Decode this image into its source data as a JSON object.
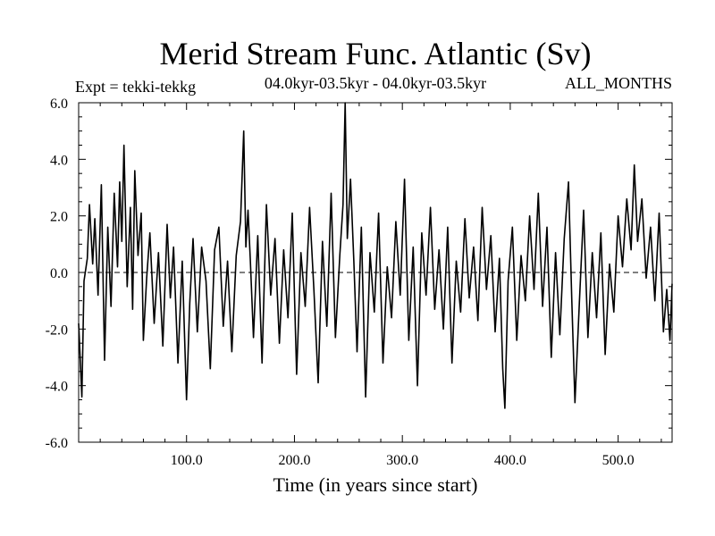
{
  "chart_data": {
    "type": "line",
    "title": "Merid Stream Func. Atlantic (Sv)",
    "subtitle_left": "Expt = tekki-tekkg",
    "subtitle_center": "04.0kyr-03.5kyr - 04.0kyr-03.5kyr",
    "subtitle_right": "ALL_MONTHS",
    "xlabel": "Time (in years since start)",
    "ylabel": "",
    "xlim": [
      0,
      550
    ],
    "ylim": [
      -6,
      6
    ],
    "xticks": [
      100,
      200,
      300,
      400,
      500
    ],
    "xtick_labels": [
      "100.0",
      "200.0",
      "300.0",
      "400.0",
      "500.0"
    ],
    "yticks": [
      6,
      4,
      2,
      0,
      -2,
      -4,
      -6
    ],
    "ytick_labels": [
      "6.0",
      "4.0",
      "2.0",
      "0.0",
      "-2.0",
      "-4.0",
      "-6.0"
    ],
    "zero_line": true,
    "grid": false,
    "series": [
      {
        "color": "#000000",
        "x": [
          0,
          3,
          5,
          8,
          10,
          13,
          15,
          18,
          21,
          24,
          27,
          30,
          33,
          36,
          38,
          40,
          42,
          45,
          48,
          50,
          52,
          55,
          58,
          60,
          63,
          66,
          70,
          74,
          78,
          82,
          85,
          88,
          92,
          96,
          100,
          103,
          106,
          110,
          114,
          118,
          122,
          126,
          130,
          134,
          138,
          142,
          146,
          150,
          153,
          155,
          157,
          159,
          162,
          166,
          170,
          174,
          178,
          182,
          186,
          190,
          194,
          198,
          202,
          206,
          210,
          214,
          218,
          222,
          226,
          230,
          234,
          238,
          242,
          245,
          247,
          249,
          252,
          255,
          258,
          262,
          266,
          270,
          274,
          278,
          282,
          286,
          290,
          294,
          298,
          302,
          306,
          310,
          314,
          318,
          322,
          326,
          330,
          334,
          338,
          342,
          346,
          350,
          354,
          358,
          362,
          366,
          370,
          374,
          378,
          382,
          386,
          390,
          393,
          395,
          398,
          402,
          406,
          410,
          414,
          418,
          422,
          426,
          430,
          434,
          438,
          442,
          446,
          450,
          454,
          457,
          460,
          464,
          468,
          472,
          476,
          480,
          484,
          488,
          492,
          496,
          500,
          504,
          508,
          512,
          515,
          518,
          522,
          526,
          530,
          534,
          538,
          542,
          545,
          548,
          550
        ],
        "y": [
          -1.8,
          -4.4,
          -0.3,
          0.5,
          2.4,
          0.3,
          1.9,
          -0.8,
          3.1,
          -3.1,
          1.6,
          -1.2,
          2.8,
          0.2,
          3.2,
          1.1,
          4.5,
          -0.5,
          2.3,
          -1.3,
          3.6,
          0.6,
          2.1,
          -2.4,
          -0.2,
          1.4,
          -1.8,
          0.7,
          -2.6,
          1.7,
          -0.9,
          0.9,
          -3.2,
          0.4,
          -4.5,
          -1.1,
          1.2,
          -2.1,
          0.9,
          -0.3,
          -3.4,
          0.8,
          1.6,
          -1.9,
          0.4,
          -2.8,
          0.6,
          1.8,
          5.0,
          0.9,
          2.2,
          0.5,
          -2.3,
          1.3,
          -3.2,
          2.4,
          -0.8,
          1.2,
          -2.5,
          0.8,
          -1.6,
          2.1,
          -3.6,
          0.7,
          -1.2,
          2.3,
          -0.6,
          -3.9,
          1.1,
          -1.9,
          2.8,
          -2.3,
          0.6,
          2.4,
          6.0,
          1.2,
          3.3,
          0.4,
          -2.8,
          1.6,
          -4.4,
          0.7,
          -1.4,
          2.1,
          -3.2,
          0.2,
          -1.6,
          1.8,
          -0.8,
          3.3,
          -2.4,
          0.9,
          -4.0,
          1.4,
          -0.8,
          2.3,
          -1.3,
          0.8,
          -2.0,
          1.6,
          -3.2,
          0.4,
          -1.4,
          1.9,
          -0.9,
          0.9,
          -1.7,
          2.3,
          -0.6,
          1.3,
          -2.1,
          0.5,
          -3.4,
          -4.8,
          -0.3,
          1.6,
          -2.4,
          0.6,
          -1.0,
          2.0,
          -0.6,
          2.8,
          -1.2,
          1.6,
          -3.0,
          0.7,
          -2.2,
          1.2,
          3.2,
          -0.9,
          -4.6,
          -1.1,
          2.2,
          -2.3,
          0.7,
          -1.6,
          1.4,
          -2.9,
          0.3,
          -1.4,
          2.0,
          0.2,
          2.6,
          0.8,
          3.8,
          1.1,
          2.6,
          -0.2,
          1.6,
          -1.0,
          2.1,
          -2.1,
          -0.6,
          -2.4,
          -0.4
        ]
      }
    ]
  }
}
